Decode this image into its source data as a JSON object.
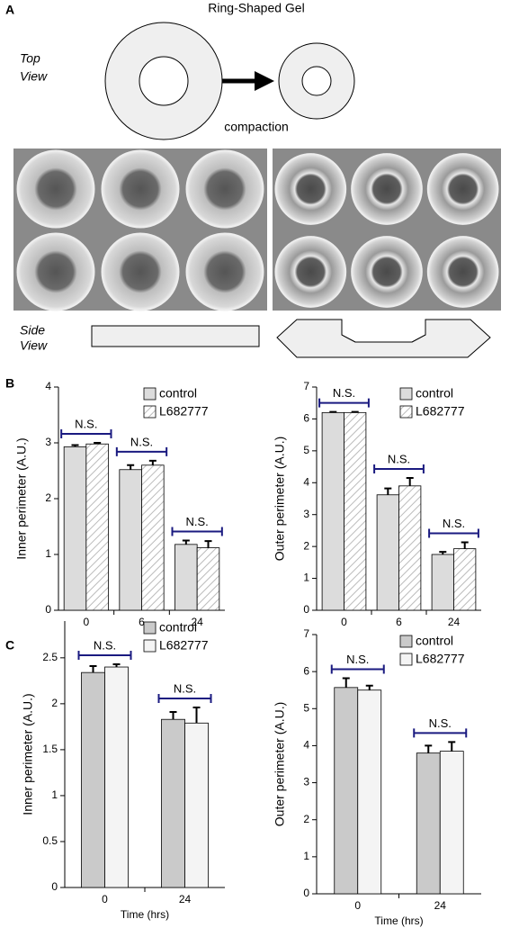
{
  "panel_labels": [
    "A",
    "B",
    "C"
  ],
  "diagram": {
    "title": "Ring-Shaped Gel",
    "top_view": [
      "Top",
      "View"
    ],
    "side_view": [
      "Side",
      "View"
    ],
    "caption": "compaction"
  },
  "chart_data": [
    {
      "type": "bar",
      "ylabel": "Inner perimeter (A.U.)",
      "categories": [
        "0",
        "6",
        "24"
      ],
      "series": [
        {
          "name": "control",
          "color": "#dcdcdc",
          "hatch": false,
          "values": [
            2.93,
            2.52,
            1.18
          ],
          "errors": [
            0.03,
            0.08,
            0.07
          ]
        },
        {
          "name": "L682777",
          "color": "#ffffff",
          "hatch": true,
          "values": [
            2.98,
            2.6,
            1.12
          ],
          "errors": [
            0.02,
            0.08,
            0.12
          ]
        }
      ],
      "annotations": [
        "N.S.",
        "N.S.",
        "N.S."
      ],
      "ylim": [
        0,
        4
      ],
      "yticks": [
        0,
        1,
        2,
        3,
        4
      ],
      "legend": "top-right"
    },
    {
      "type": "bar",
      "ylabel": "Outer perimeter (A.U.)",
      "categories": [
        "0",
        "6",
        "24"
      ],
      "series": [
        {
          "name": "control",
          "color": "#dcdcdc",
          "hatch": false,
          "values": [
            6.2,
            3.62,
            1.75
          ],
          "errors": [
            0.02,
            0.2,
            0.08
          ]
        },
        {
          "name": "L682777",
          "color": "#ffffff",
          "hatch": true,
          "values": [
            6.2,
            3.9,
            1.93
          ],
          "errors": [
            0.02,
            0.25,
            0.2
          ]
        }
      ],
      "annotations": [
        "N.S.",
        "N.S.",
        "N.S."
      ],
      "ylim": [
        0,
        7
      ],
      "yticks": [
        0,
        1,
        2,
        3,
        4,
        5,
        6,
        7
      ],
      "legend": "top-right"
    },
    {
      "type": "bar",
      "ylabel": "Inner perimeter (A.U.)",
      "xlabel": "Time (hrs)",
      "categories": [
        "0",
        "24"
      ],
      "series": [
        {
          "name": "control",
          "color": "#cacaca",
          "hatch": false,
          "values": [
            2.34,
            1.83
          ],
          "errors": [
            0.07,
            0.08
          ]
        },
        {
          "name": "L682777",
          "color": "#f4f4f4",
          "hatch": false,
          "values": [
            2.4,
            1.79
          ],
          "errors": [
            0.03,
            0.17
          ]
        }
      ],
      "annotations": [
        "N.S.",
        "N.S."
      ],
      "ylim": [
        0,
        2.9
      ],
      "yticks": [
        0,
        0.5,
        1,
        1.5,
        2,
        2.5
      ],
      "legend": "top-right"
    },
    {
      "type": "bar",
      "ylabel": "Outer perimeter (A.U.)",
      "xlabel": "Time (hrs)",
      "categories": [
        "0",
        "24"
      ],
      "series": [
        {
          "name": "control",
          "color": "#cacaca",
          "hatch": false,
          "values": [
            5.57,
            3.8
          ],
          "errors": [
            0.25,
            0.2
          ]
        },
        {
          "name": "L682777",
          "color": "#f4f4f4",
          "hatch": false,
          "values": [
            5.5,
            3.85
          ],
          "errors": [
            0.12,
            0.25
          ]
        }
      ],
      "annotations": [
        "N.S.",
        "N.S."
      ],
      "ylim": [
        0,
        7
      ],
      "yticks": [
        0,
        1,
        2,
        3,
        4,
        5,
        6,
        7
      ],
      "legend": "top-right"
    }
  ]
}
